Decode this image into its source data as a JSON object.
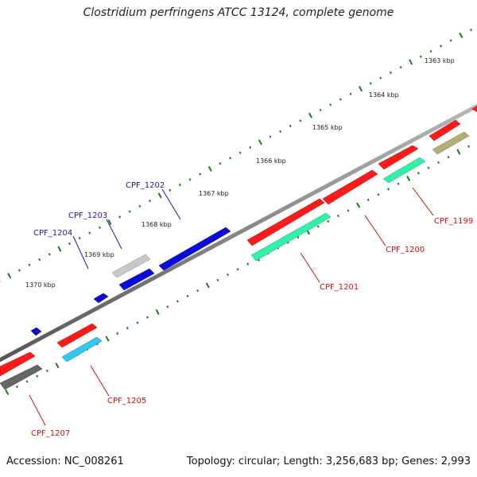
{
  "title": "Clostridium perfringens ATCC 13124, complete genome",
  "footer": {
    "accession": "Accession: NC_008261",
    "summary": "Topology: circular; Length: 3,256,683 bp; Genes: 2,993"
  },
  "ruler": {
    "labels": [
      "1363 kbp",
      "1364 kbp",
      "1365 kbp",
      "1366 kbp",
      "1367 kbp",
      "1368 kbp",
      "1369 kbp",
      "1370 kbp"
    ]
  },
  "gene_labels": {
    "blue": [
      "CPF_1202",
      "CPF_1203",
      "CPF_1204"
    ],
    "red": [
      "CPF_1199",
      "CPF_1200",
      "CPF_1201",
      "CPF_1205",
      "CPF_1207"
    ]
  },
  "colors": {
    "backbone": "#777777",
    "tick": "#1a7a1a",
    "forward_cds": "#ff1a1a",
    "forward_gene": "#33f0a8",
    "reverse_cds": "#0a0adc",
    "reverse_light": "#c8c8c8",
    "pseudo": "#b5ae74",
    "cyan": "#33c8f0",
    "dark": "#666666",
    "label_blue": "#1a1aaa",
    "label_red": "#cc1111"
  }
}
